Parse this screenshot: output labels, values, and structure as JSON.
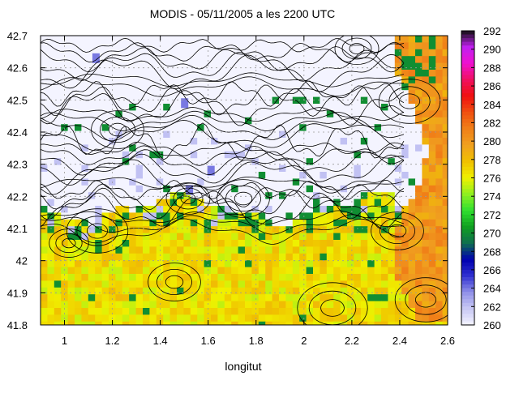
{
  "chart_data": {
    "type": "heatmap",
    "title": "MODIS - 05/11/2005 a les 2200 UTC",
    "xlabel": "longitut",
    "ylabel": "",
    "xlim": [
      0.9,
      2.6
    ],
    "ylim": [
      41.8,
      42.7
    ],
    "xticks": [
      "1",
      "1.2",
      "1.4",
      "1.6",
      "1.8",
      "2",
      "2.2",
      "2.4",
      "2.6"
    ],
    "yticks": [
      "42.7",
      "42.6",
      "42.5",
      "42.4",
      "42.3",
      "42.2",
      "42.1",
      "42",
      "41.9",
      "41.8"
    ],
    "grid": true,
    "colorbar": {
      "min": 260,
      "max": 292,
      "ticks": [
        "292",
        "290",
        "288",
        "286",
        "284",
        "282",
        "280",
        "278",
        "276",
        "274",
        "272",
        "270",
        "268",
        "266",
        "264",
        "262",
        "260"
      ],
      "colors": [
        "#f4f4ff",
        "#c8c8f4",
        "#9090e8",
        "#3030d0",
        "#0000b0",
        "#0f6f4f",
        "#10a020",
        "#30e030",
        "#90f020",
        "#f0f000",
        "#f0c000",
        "#f0a020",
        "#f08018",
        "#f05010",
        "#f01010",
        "#f01060",
        "#f010d0",
        "#c020f0",
        "#101010"
      ]
    },
    "regions_summary": {
      "south_band_value_approx": 276,
      "north_cloud_value_approx": 260,
      "green_patches_value_approx": 270,
      "east_edge_value_approx": 280,
      "blue_spots_value_approx": 264
    }
  }
}
